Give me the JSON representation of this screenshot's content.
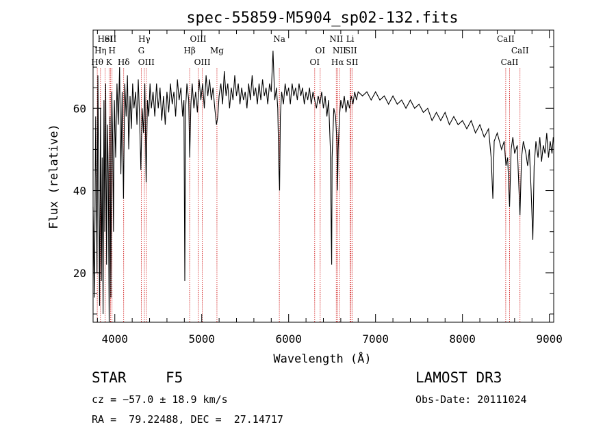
{
  "chart_data": {
    "type": "line",
    "title": "spec-55859-M5904_sp02-132.fits",
    "xlabel": "Wavelength (Å)",
    "ylabel": "Flux (relative)",
    "xlim": [
      3750,
      9050
    ],
    "ylim": [
      8,
      79
    ],
    "xticks": [
      4000,
      5000,
      6000,
      7000,
      8000,
      9000
    ],
    "yticks": [
      20,
      40,
      60
    ],
    "series": [
      {
        "name": "flux",
        "points": [
          [
            3750,
            36
          ],
          [
            3765,
            14
          ],
          [
            3780,
            58
          ],
          [
            3795,
            20
          ],
          [
            3805,
            68
          ],
          [
            3815,
            42
          ],
          [
            3825,
            12
          ],
          [
            3835,
            60
          ],
          [
            3845,
            18
          ],
          [
            3855,
            48
          ],
          [
            3865,
            10
          ],
          [
            3875,
            62
          ],
          [
            3885,
            30
          ],
          [
            3895,
            66
          ],
          [
            3905,
            22
          ],
          [
            3915,
            56
          ],
          [
            3925,
            44
          ],
          [
            3935,
            8
          ],
          [
            3945,
            58
          ],
          [
            3955,
            14
          ],
          [
            3965,
            64
          ],
          [
            3975,
            52
          ],
          [
            3985,
            30
          ],
          [
            3995,
            62
          ],
          [
            4010,
            48
          ],
          [
            4025,
            66
          ],
          [
            4040,
            56
          ],
          [
            4055,
            70
          ],
          [
            4070,
            44
          ],
          [
            4085,
            64
          ],
          [
            4100,
            38
          ],
          [
            4115,
            66
          ],
          [
            4130,
            58
          ],
          [
            4145,
            68
          ],
          [
            4160,
            50
          ],
          [
            4175,
            63
          ],
          [
            4190,
            55
          ],
          [
            4205,
            66
          ],
          [
            4220,
            60
          ],
          [
            4240,
            64
          ],
          [
            4255,
            56
          ],
          [
            4270,
            67
          ],
          [
            4285,
            58
          ],
          [
            4300,
            45
          ],
          [
            4315,
            60
          ],
          [
            4330,
            54
          ],
          [
            4345,
            66
          ],
          [
            4360,
            42
          ],
          [
            4375,
            62
          ],
          [
            4390,
            58
          ],
          [
            4405,
            66
          ],
          [
            4420,
            60
          ],
          [
            4440,
            64
          ],
          [
            4460,
            58
          ],
          [
            4480,
            66
          ],
          [
            4500,
            60
          ],
          [
            4520,
            65
          ],
          [
            4540,
            57
          ],
          [
            4560,
            63
          ],
          [
            4580,
            56
          ],
          [
            4600,
            64
          ],
          [
            4620,
            59
          ],
          [
            4640,
            66
          ],
          [
            4660,
            61
          ],
          [
            4680,
            64
          ],
          [
            4700,
            58
          ],
          [
            4720,
            67
          ],
          [
            4740,
            62
          ],
          [
            4760,
            65
          ],
          [
            4780,
            58
          ],
          [
            4795,
            62
          ],
          [
            4805,
            18
          ],
          [
            4815,
            60
          ],
          [
            4830,
            66
          ],
          [
            4850,
            62
          ],
          [
            4862,
            48
          ],
          [
            4875,
            61
          ],
          [
            4890,
            66
          ],
          [
            4910,
            60
          ],
          [
            4930,
            64
          ],
          [
            4950,
            59
          ],
          [
            4970,
            67
          ],
          [
            4990,
            62
          ],
          [
            5010,
            66
          ],
          [
            5030,
            60
          ],
          [
            5050,
            68
          ],
          [
            5070,
            63
          ],
          [
            5090,
            67
          ],
          [
            5110,
            62
          ],
          [
            5130,
            65
          ],
          [
            5150,
            60
          ],
          [
            5170,
            56
          ],
          [
            5185,
            58
          ],
          [
            5200,
            63
          ],
          [
            5220,
            66
          ],
          [
            5240,
            61
          ],
          [
            5260,
            69
          ],
          [
            5280,
            63
          ],
          [
            5300,
            66
          ],
          [
            5320,
            60
          ],
          [
            5340,
            65
          ],
          [
            5360,
            62
          ],
          [
            5380,
            68
          ],
          [
            5400,
            63
          ],
          [
            5420,
            66
          ],
          [
            5440,
            61
          ],
          [
            5460,
            65
          ],
          [
            5480,
            62
          ],
          [
            5500,
            64
          ],
          [
            5520,
            60
          ],
          [
            5540,
            66
          ],
          [
            5560,
            62
          ],
          [
            5580,
            68
          ],
          [
            5600,
            63
          ],
          [
            5620,
            65
          ],
          [
            5640,
            61
          ],
          [
            5660,
            66
          ],
          [
            5680,
            62
          ],
          [
            5700,
            67
          ],
          [
            5720,
            63
          ],
          [
            5740,
            65
          ],
          [
            5760,
            61
          ],
          [
            5780,
            66
          ],
          [
            5800,
            64
          ],
          [
            5820,
            74
          ],
          [
            5840,
            62
          ],
          [
            5860,
            65
          ],
          [
            5875,
            60
          ],
          [
            5890,
            44
          ],
          [
            5896,
            40
          ],
          [
            5905,
            58
          ],
          [
            5920,
            64
          ],
          [
            5940,
            61
          ],
          [
            5960,
            66
          ],
          [
            5980,
            63
          ],
          [
            6000,
            65
          ],
          [
            6020,
            61
          ],
          [
            6040,
            66
          ],
          [
            6060,
            63
          ],
          [
            6080,
            65
          ],
          [
            6100,
            62
          ],
          [
            6120,
            66
          ],
          [
            6140,
            63
          ],
          [
            6160,
            65
          ],
          [
            6180,
            61
          ],
          [
            6200,
            64
          ],
          [
            6220,
            62
          ],
          [
            6240,
            65
          ],
          [
            6260,
            61
          ],
          [
            6280,
            64
          ],
          [
            6300,
            62
          ],
          [
            6320,
            60
          ],
          [
            6340,
            63
          ],
          [
            6360,
            61
          ],
          [
            6380,
            64
          ],
          [
            6400,
            60
          ],
          [
            6420,
            63
          ],
          [
            6440,
            58
          ],
          [
            6460,
            62
          ],
          [
            6480,
            50
          ],
          [
            6490,
            30
          ],
          [
            6495,
            22
          ],
          [
            6500,
            48
          ],
          [
            6520,
            60
          ],
          [
            6540,
            58
          ],
          [
            6555,
            52
          ],
          [
            6563,
            40
          ],
          [
            6570,
            50
          ],
          [
            6585,
            58
          ],
          [
            6600,
            62
          ],
          [
            6620,
            60
          ],
          [
            6640,
            63
          ],
          [
            6660,
            59
          ],
          [
            6680,
            62
          ],
          [
            6700,
            60
          ],
          [
            6720,
            63
          ],
          [
            6740,
            61
          ],
          [
            6760,
            64
          ],
          [
            6780,
            62
          ],
          [
            6800,
            64
          ],
          [
            6850,
            63
          ],
          [
            6900,
            64
          ],
          [
            6950,
            62
          ],
          [
            7000,
            64
          ],
          [
            7050,
            62
          ],
          [
            7100,
            63
          ],
          [
            7150,
            61
          ],
          [
            7200,
            63
          ],
          [
            7250,
            61
          ],
          [
            7300,
            62
          ],
          [
            7350,
            60
          ],
          [
            7400,
            62
          ],
          [
            7450,
            60
          ],
          [
            7500,
            61
          ],
          [
            7550,
            59
          ],
          [
            7600,
            60
          ],
          [
            7650,
            57
          ],
          [
            7700,
            59
          ],
          [
            7750,
            57
          ],
          [
            7800,
            59
          ],
          [
            7850,
            56
          ],
          [
            7900,
            58
          ],
          [
            7950,
            56
          ],
          [
            8000,
            57
          ],
          [
            8050,
            55
          ],
          [
            8100,
            57
          ],
          [
            8150,
            54
          ],
          [
            8200,
            56
          ],
          [
            8250,
            53
          ],
          [
            8300,
            55
          ],
          [
            8330,
            48
          ],
          [
            8350,
            38
          ],
          [
            8365,
            52
          ],
          [
            8400,
            54
          ],
          [
            8450,
            50
          ],
          [
            8480,
            52
          ],
          [
            8500,
            46
          ],
          [
            8520,
            48
          ],
          [
            8542,
            36
          ],
          [
            8560,
            50
          ],
          [
            8580,
            53
          ],
          [
            8600,
            49
          ],
          [
            8630,
            51
          ],
          [
            8662,
            34
          ],
          [
            8680,
            48
          ],
          [
            8700,
            52
          ],
          [
            8730,
            49
          ],
          [
            8750,
            46
          ],
          [
            8770,
            50
          ],
          [
            8790,
            40
          ],
          [
            8810,
            28
          ],
          [
            8825,
            46
          ],
          [
            8845,
            52
          ],
          [
            8870,
            48
          ],
          [
            8890,
            53
          ],
          [
            8910,
            47
          ],
          [
            8930,
            51
          ],
          [
            8950,
            49
          ],
          [
            8970,
            54
          ],
          [
            8990,
            48
          ],
          [
            9010,
            52
          ],
          [
            9030,
            49
          ],
          [
            9045,
            53
          ]
        ]
      }
    ],
    "line_markers": [
      {
        "label": "HeI",
        "wavelength": 3889,
        "row": 0
      },
      {
        "label": "SII",
        "wavelength": 3950,
        "row": 0
      },
      {
        "label": "Hη",
        "wavelength": 3835,
        "row": 1
      },
      {
        "label": "H",
        "wavelength": 3968,
        "row": 1
      },
      {
        "label": "K",
        "wavelength": 3934,
        "row": 2
      },
      {
        "label": "Hθ",
        "wavelength": 3798,
        "row": 2
      },
      {
        "label": "Hδ",
        "wavelength": 4102,
        "row": 2
      },
      {
        "label": "Hγ",
        "wavelength": 4340,
        "row": 0
      },
      {
        "label": "G",
        "wavelength": 4305,
        "row": 1
      },
      {
        "label": "OIII",
        "wavelength": 4363,
        "row": 2
      },
      {
        "label": "OIII",
        "wavelength": 4959,
        "row": 0
      },
      {
        "label": "Hβ",
        "wavelength": 4861,
        "row": 1
      },
      {
        "label": "Mg",
        "wavelength": 5175,
        "row": 1
      },
      {
        "label": "OIII",
        "wavelength": 5007,
        "row": 2
      },
      {
        "label": "Na",
        "wavelength": 5893,
        "row": 0
      },
      {
        "label": "OI",
        "wavelength": 6363,
        "row": 1
      },
      {
        "label": "OI",
        "wavelength": 6300,
        "row": 2
      },
      {
        "label": "NII",
        "wavelength": 6548,
        "row": 0
      },
      {
        "label": "Li",
        "wavelength": 6708,
        "row": 0
      },
      {
        "label": "NII",
        "wavelength": 6584,
        "row": 1
      },
      {
        "label": "SII",
        "wavelength": 6717,
        "row": 1
      },
      {
        "label": "Hα",
        "wavelength": 6563,
        "row": 2
      },
      {
        "label": "SII",
        "wavelength": 6731,
        "row": 2
      },
      {
        "label": "CaII",
        "wavelength": 8498,
        "row": 0
      },
      {
        "label": "CaII",
        "wavelength": 8662,
        "row": 1
      },
      {
        "label": "CaII",
        "wavelength": 8542,
        "row": 2
      }
    ]
  },
  "info": {
    "class_label": "STAR",
    "subclass": "F5",
    "survey": "LAMOST DR3",
    "cz": "cz = −57.0 ± 18.9 km/s",
    "obs_date": "Obs-Date: 20111024",
    "coords": "RA =  79.22488, DEC =  27.14717"
  },
  "colors": {
    "axes": "#000000",
    "spectrum": "#000000",
    "line_markers": "#cc0000",
    "background": "#ffffff"
  }
}
